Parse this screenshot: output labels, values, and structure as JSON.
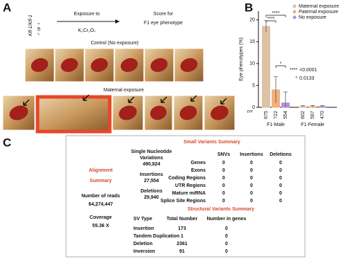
{
  "panel_a": {
    "label": "A",
    "genotype": "Kfl-1/Kfl-1",
    "sexes": "♂ or ♀",
    "exposure": "Exposure to",
    "compound": "K₂Cr₂O₇",
    "score_line1": "Score for",
    "score_line2": "F1 eye phenotype",
    "control_title": "Control (No exposure)",
    "maternal_title": "Maternal exposure"
  },
  "panel_b_label": "B",
  "chart_data": {
    "type": "bar",
    "y_label": "Eye phenotypes (%)",
    "categories": [
      "F1-Male",
      "F1-Female"
    ],
    "series": [
      {
        "name": "Maternal exposure",
        "color": "#dcc3a6",
        "values": [
          18.5,
          0.2
        ],
        "errors": [
          1.3,
          0.2
        ],
        "n": [
          675,
          602
        ]
      },
      {
        "name": "Paternal exposure",
        "color": "#f2b07a",
        "values": [
          4,
          0.2
        ],
        "errors": [
          3,
          0.2
        ],
        "n": [
          722,
          597
        ]
      },
      {
        "name": "No exposure",
        "color": "#b690dc",
        "values": [
          1,
          0.2
        ],
        "errors": [
          2.5,
          0.2
        ],
        "n": [
          554,
          470
        ]
      }
    ],
    "ylim": [
      0,
      22
    ],
    "yticks": [
      0,
      5,
      10,
      15,
      20
    ],
    "n_label": "n=",
    "brackets": [
      "****",
      "****",
      "*"
    ],
    "significance_legend": [
      {
        "stars": "****",
        "p": "<0.0001"
      },
      {
        "stars": "*",
        "p": "0.0133"
      }
    ]
  },
  "panel_c": {
    "label": "C",
    "small_title": "Small Variants Summary",
    "counts": [
      {
        "label1": "Single Nucleotide",
        "label2": "Variations",
        "value": "490,824"
      },
      {
        "label1": "Insertions",
        "value": "27,554"
      },
      {
        "label1": "Deletions",
        "value": "29,940"
      }
    ],
    "columns": [
      "SNVs",
      "Insertions",
      "Deletions"
    ],
    "rows": [
      [
        "Genes",
        "0",
        "0",
        "0"
      ],
      [
        "Exons",
        "0",
        "0",
        "0"
      ],
      [
        "Coding Regions",
        "0",
        "0",
        "0"
      ],
      [
        "UTR Regions",
        "0",
        "0",
        "0"
      ],
      [
        "Mature miRNA",
        "0",
        "0",
        "0"
      ],
      [
        "Splice Site Regions",
        "0",
        "0",
        "0"
      ]
    ],
    "alignment_title1": "Alignment",
    "alignment_title2": "Summary",
    "reads_label": "Number of reads",
    "reads": "64,274,447",
    "coverage_label": "Coverage",
    "coverage": "55.36 X",
    "sv_title": "Structural Variants Summary",
    "sv_columns": [
      "SV Type",
      "Total Number",
      "Number in genes"
    ],
    "sv_rows": [
      [
        "Insertion",
        "173",
        "0"
      ],
      [
        "Tandem Duplication",
        "1",
        "0"
      ],
      [
        "Deletion",
        "2361",
        "0"
      ],
      [
        "Inversion",
        "91",
        "0"
      ]
    ]
  }
}
